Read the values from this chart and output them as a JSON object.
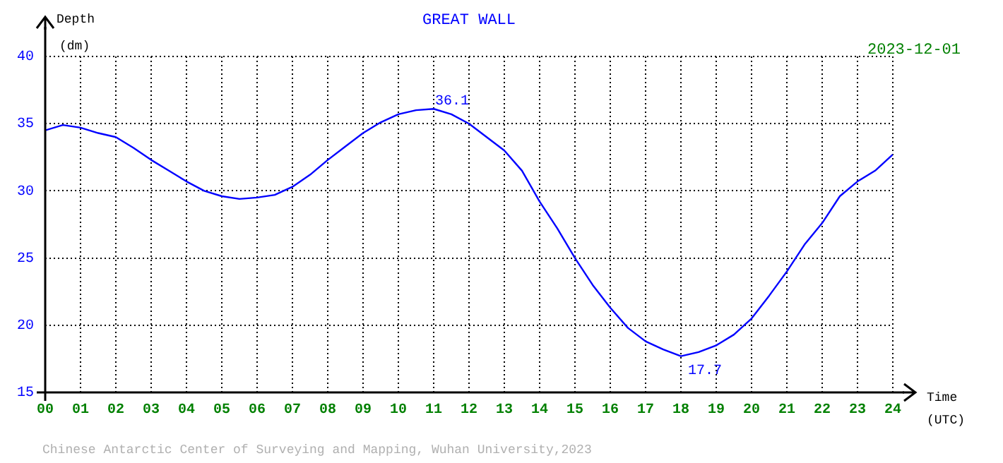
{
  "chart_data": {
    "type": "line",
    "title": "GREAT WALL",
    "xlabel": "Time (UTC)",
    "ylabel": "Depth (dm)",
    "x": [
      0,
      0.5,
      1,
      1.5,
      2,
      2.5,
      3,
      3.5,
      4,
      4.5,
      5,
      5.5,
      6,
      6.5,
      7,
      7.5,
      8,
      8.5,
      9,
      9.5,
      10,
      10.5,
      11,
      11.5,
      12,
      12.5,
      13,
      13.5,
      14,
      14.5,
      15,
      15.5,
      16,
      16.5,
      17,
      17.5,
      18,
      18.5,
      19,
      19.5,
      20,
      20.5,
      21,
      21.5,
      22,
      22.5,
      23,
      23.5,
      24
    ],
    "series": [
      {
        "color": "#0000ff",
        "values": [
          34.5,
          34.9,
          34.7,
          34.3,
          34.0,
          33.2,
          32.3,
          31.5,
          30.7,
          30.0,
          29.6,
          29.4,
          29.5,
          29.7,
          30.3,
          31.2,
          32.3,
          33.3,
          34.3,
          35.1,
          35.7,
          36.0,
          36.1,
          35.7,
          35.0,
          34.0,
          33.0,
          31.5,
          29.2,
          27.2,
          25.0,
          23.0,
          21.3,
          19.8,
          18.8,
          18.2,
          17.7,
          18.0,
          18.5,
          19.3,
          20.5,
          22.2,
          24.0,
          26.0,
          27.6,
          29.6,
          30.7,
          31.5,
          32.7
        ]
      }
    ],
    "xlim": [
      0,
      24
    ],
    "xticks": [
      {
        "value": 0,
        "label": "00"
      },
      {
        "value": 1,
        "label": "01"
      },
      {
        "value": 2,
        "label": "02"
      },
      {
        "value": 3,
        "label": "03"
      },
      {
        "value": 4,
        "label": "04"
      },
      {
        "value": 5,
        "label": "05"
      },
      {
        "value": 6,
        "label": "06"
      },
      {
        "value": 7,
        "label": "07"
      },
      {
        "value": 8,
        "label": "08"
      },
      {
        "value": 9,
        "label": "09"
      },
      10,
      11,
      12,
      13,
      14,
      15,
      16,
      17,
      18,
      19,
      20,
      21,
      22,
      23,
      24
    ],
    "ylim": [
      15,
      40
    ],
    "yticks": [
      15,
      20,
      25,
      30,
      35,
      40
    ],
    "grid": true,
    "legend": false,
    "marker": "none",
    "line_style": "solid",
    "annotations": [
      "2023-12-01",
      "Chinese Antarctic Center of Surveying and Mapping, Wuhan University,2023",
      {
        "text": "36.1",
        "x": 11,
        "y": 36.1
      },
      {
        "text": "17.7",
        "x": 18,
        "y": 17.7
      }
    ]
  }
}
